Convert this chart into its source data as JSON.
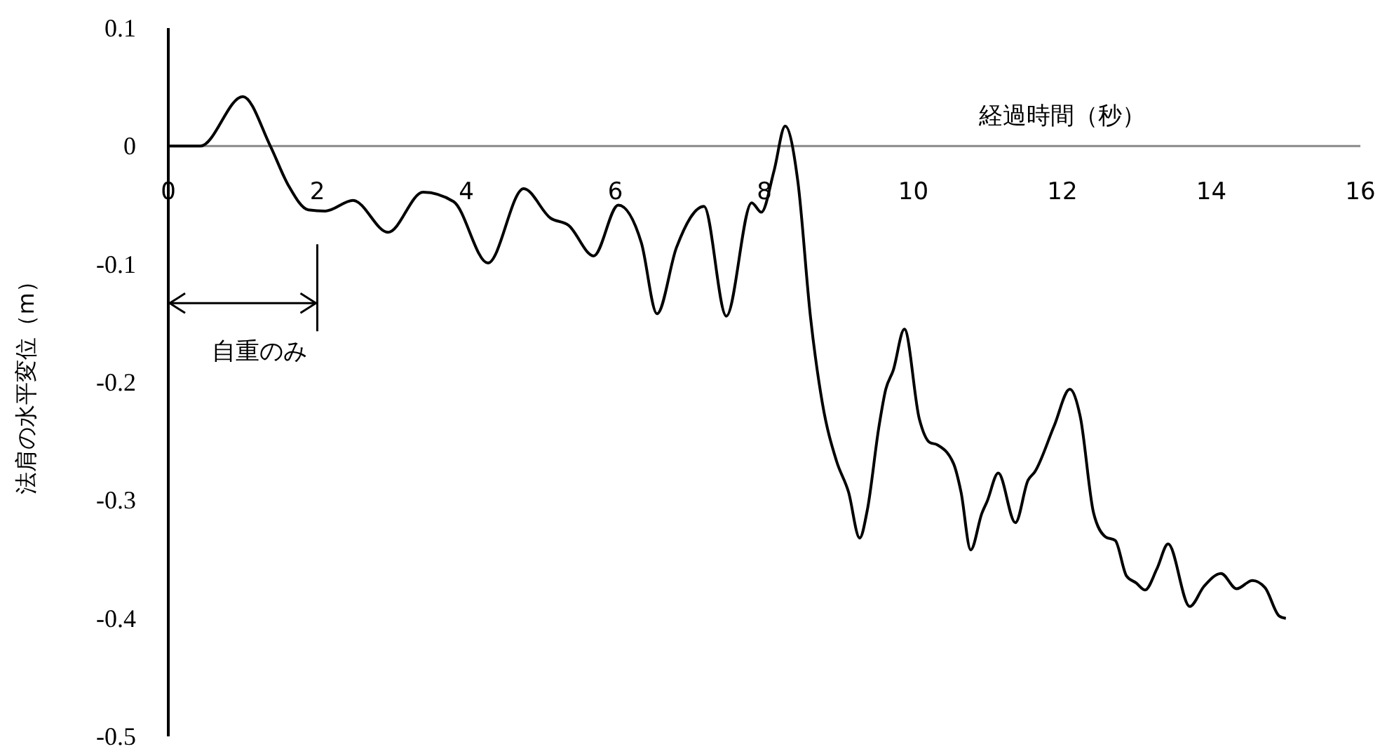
{
  "chart_data": {
    "type": "line",
    "xlabel": "経過時間（秒）",
    "ylabel": "法肩の水平変位（m）",
    "xlim": [
      0,
      16
    ],
    "xticks": [
      0,
      2,
      4,
      6,
      8,
      10,
      12,
      14,
      16
    ],
    "ylim": [
      -0.5,
      0.1
    ],
    "yticks": [
      0.1,
      0,
      -0.1,
      -0.2,
      -0.3,
      -0.4,
      -0.5
    ],
    "ref_lines": [
      {
        "axis": "x",
        "value": 2,
        "label": "自重のみ"
      }
    ],
    "series": [
      {
        "color": "#000000",
        "x": [
          0,
          0.43,
          1.0,
          1.37,
          1.61,
          1.88,
          2.11,
          2.48,
          2.95,
          3.42,
          3.83,
          4.29,
          4.77,
          5.13,
          5.37,
          5.71,
          6.04,
          6.35,
          6.56,
          6.82,
          7.19,
          7.49,
          7.83,
          7.96,
          8.13,
          8.28,
          8.45,
          8.62,
          8.78,
          8.97,
          9.13,
          9.28,
          9.38,
          9.54,
          9.63,
          9.73,
          9.88,
          10.08,
          10.22,
          10.32,
          10.54,
          10.64,
          10.77,
          10.92,
          10.99,
          11.14,
          11.37,
          11.54,
          11.63,
          11.89,
          12.1,
          12.24,
          12.42,
          12.58,
          12.71,
          12.86,
          12.99,
          13.11,
          13.27,
          13.42,
          13.71,
          13.9,
          14.13,
          14.34,
          14.55,
          14.72,
          14.91,
          15.0
        ],
        "values": [
          0,
          0,
          0.042,
          0,
          -0.033,
          -0.054,
          -0.055,
          -0.046,
          -0.073,
          -0.039,
          -0.047,
          -0.099,
          -0.036,
          -0.061,
          -0.067,
          -0.093,
          -0.05,
          -0.082,
          -0.142,
          -0.086,
          -0.051,
          -0.144,
          -0.048,
          -0.056,
          -0.021,
          0.017,
          -0.03,
          -0.145,
          -0.218,
          -0.267,
          -0.293,
          -0.332,
          -0.309,
          -0.237,
          -0.206,
          -0.19,
          -0.155,
          -0.231,
          -0.251,
          -0.253,
          -0.269,
          -0.293,
          -0.342,
          -0.311,
          -0.301,
          -0.277,
          -0.319,
          -0.283,
          -0.276,
          -0.237,
          -0.206,
          -0.229,
          -0.311,
          -0.331,
          -0.334,
          -0.364,
          -0.37,
          -0.376,
          -0.358,
          -0.337,
          -0.39,
          -0.373,
          -0.362,
          -0.375,
          -0.368,
          -0.374,
          -0.398,
          -0.4
        ]
      }
    ]
  }
}
